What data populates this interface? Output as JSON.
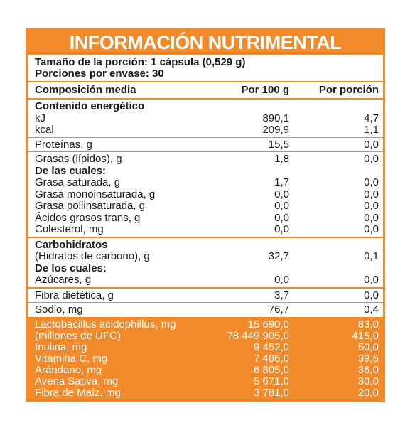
{
  "title": "INFORMACIÓN NUTRIMENTAL",
  "serving": {
    "size": "Tamaño de la porción: 1 cápsula (0,529 g)",
    "per_container": "Porciones por envase: 30"
  },
  "header": {
    "col1": "Composición media",
    "col2": "Por 100 g",
    "col3": "Por porción"
  },
  "sections": [
    {
      "rows": [
        {
          "label": "Contenido energético",
          "bold": true,
          "per100": "",
          "perServing": ""
        },
        {
          "label": "kJ",
          "per100": "890,1",
          "perServing": "4,7"
        },
        {
          "label": "kcal",
          "per100": "209,9",
          "perServing": "1,1"
        }
      ]
    },
    {
      "rows": [
        {
          "label": "Proteínas, g",
          "per100": "15,5",
          "perServing": "0,0"
        }
      ]
    },
    {
      "thick": true,
      "rows": [
        {
          "label": "Grasas (lípidos), g",
          "per100": "1,8",
          "perServing": "0,0"
        },
        {
          "label": "De las cuales:",
          "bold": true,
          "per100": "",
          "perServing": ""
        },
        {
          "label": "Grasa saturada, g",
          "per100": "1,7",
          "perServing": "0,0"
        },
        {
          "label": "Grasa monoinsaturada, g",
          "per100": "0,0",
          "perServing": "0,0"
        },
        {
          "label": "Grasa poliinsaturada, g",
          "per100": "0,0",
          "perServing": "0,0"
        },
        {
          "label": "Ácidos grasos trans, g",
          "per100": "0,0",
          "perServing": "0,0"
        },
        {
          "label": "Colesterol, mg",
          "per100": "0,0",
          "perServing": "0,0"
        }
      ]
    },
    {
      "thick": true,
      "rows": [
        {
          "label": "Carbohidratos",
          "bold": true,
          "per100": "",
          "perServing": ""
        },
        {
          "label": "(Hidratos de carbono), g",
          "per100": "32,7",
          "perServing": "0,1"
        },
        {
          "label": "De los cuales:",
          "bold": true,
          "per100": "",
          "perServing": ""
        },
        {
          "label": "Azúcares, g",
          "per100": "0,0",
          "perServing": "0,0"
        }
      ]
    },
    {
      "rows": [
        {
          "label": "Fibra dietética, g",
          "per100": "3,7",
          "perServing": "0,0"
        }
      ]
    },
    {
      "rows": [
        {
          "label": "Sodio, mg",
          "per100": "76,7",
          "perServing": "0,4"
        }
      ]
    }
  ],
  "additional": [
    {
      "label": "Lactobacillus acidophillus, mg",
      "per100": "15 690,0",
      "perServing": "83,0"
    },
    {
      "label": "(millones de UFC)",
      "per100": "78 449 905,0",
      "perServing": "415,0"
    },
    {
      "label": "Inulina, mg",
      "per100": "9 452,0",
      "perServing": "50,0"
    },
    {
      "label": "Vitamina C, mg",
      "per100": "7 486,0",
      "perServing": "39,6"
    },
    {
      "label": "Arándano, mg",
      "per100": "6 805,0",
      "perServing": "36,0"
    },
    {
      "label": "Avena Sativa, mg",
      "per100": "5 671,0",
      "perServing": "30,0"
    },
    {
      "label": "Fibra de Maíz, mg",
      "per100": "3 781,0",
      "perServing": "20,0"
    }
  ],
  "colors": {
    "accent": "#f08a2a",
    "text": "#1a1a1a",
    "on_accent": "#ffffff"
  }
}
